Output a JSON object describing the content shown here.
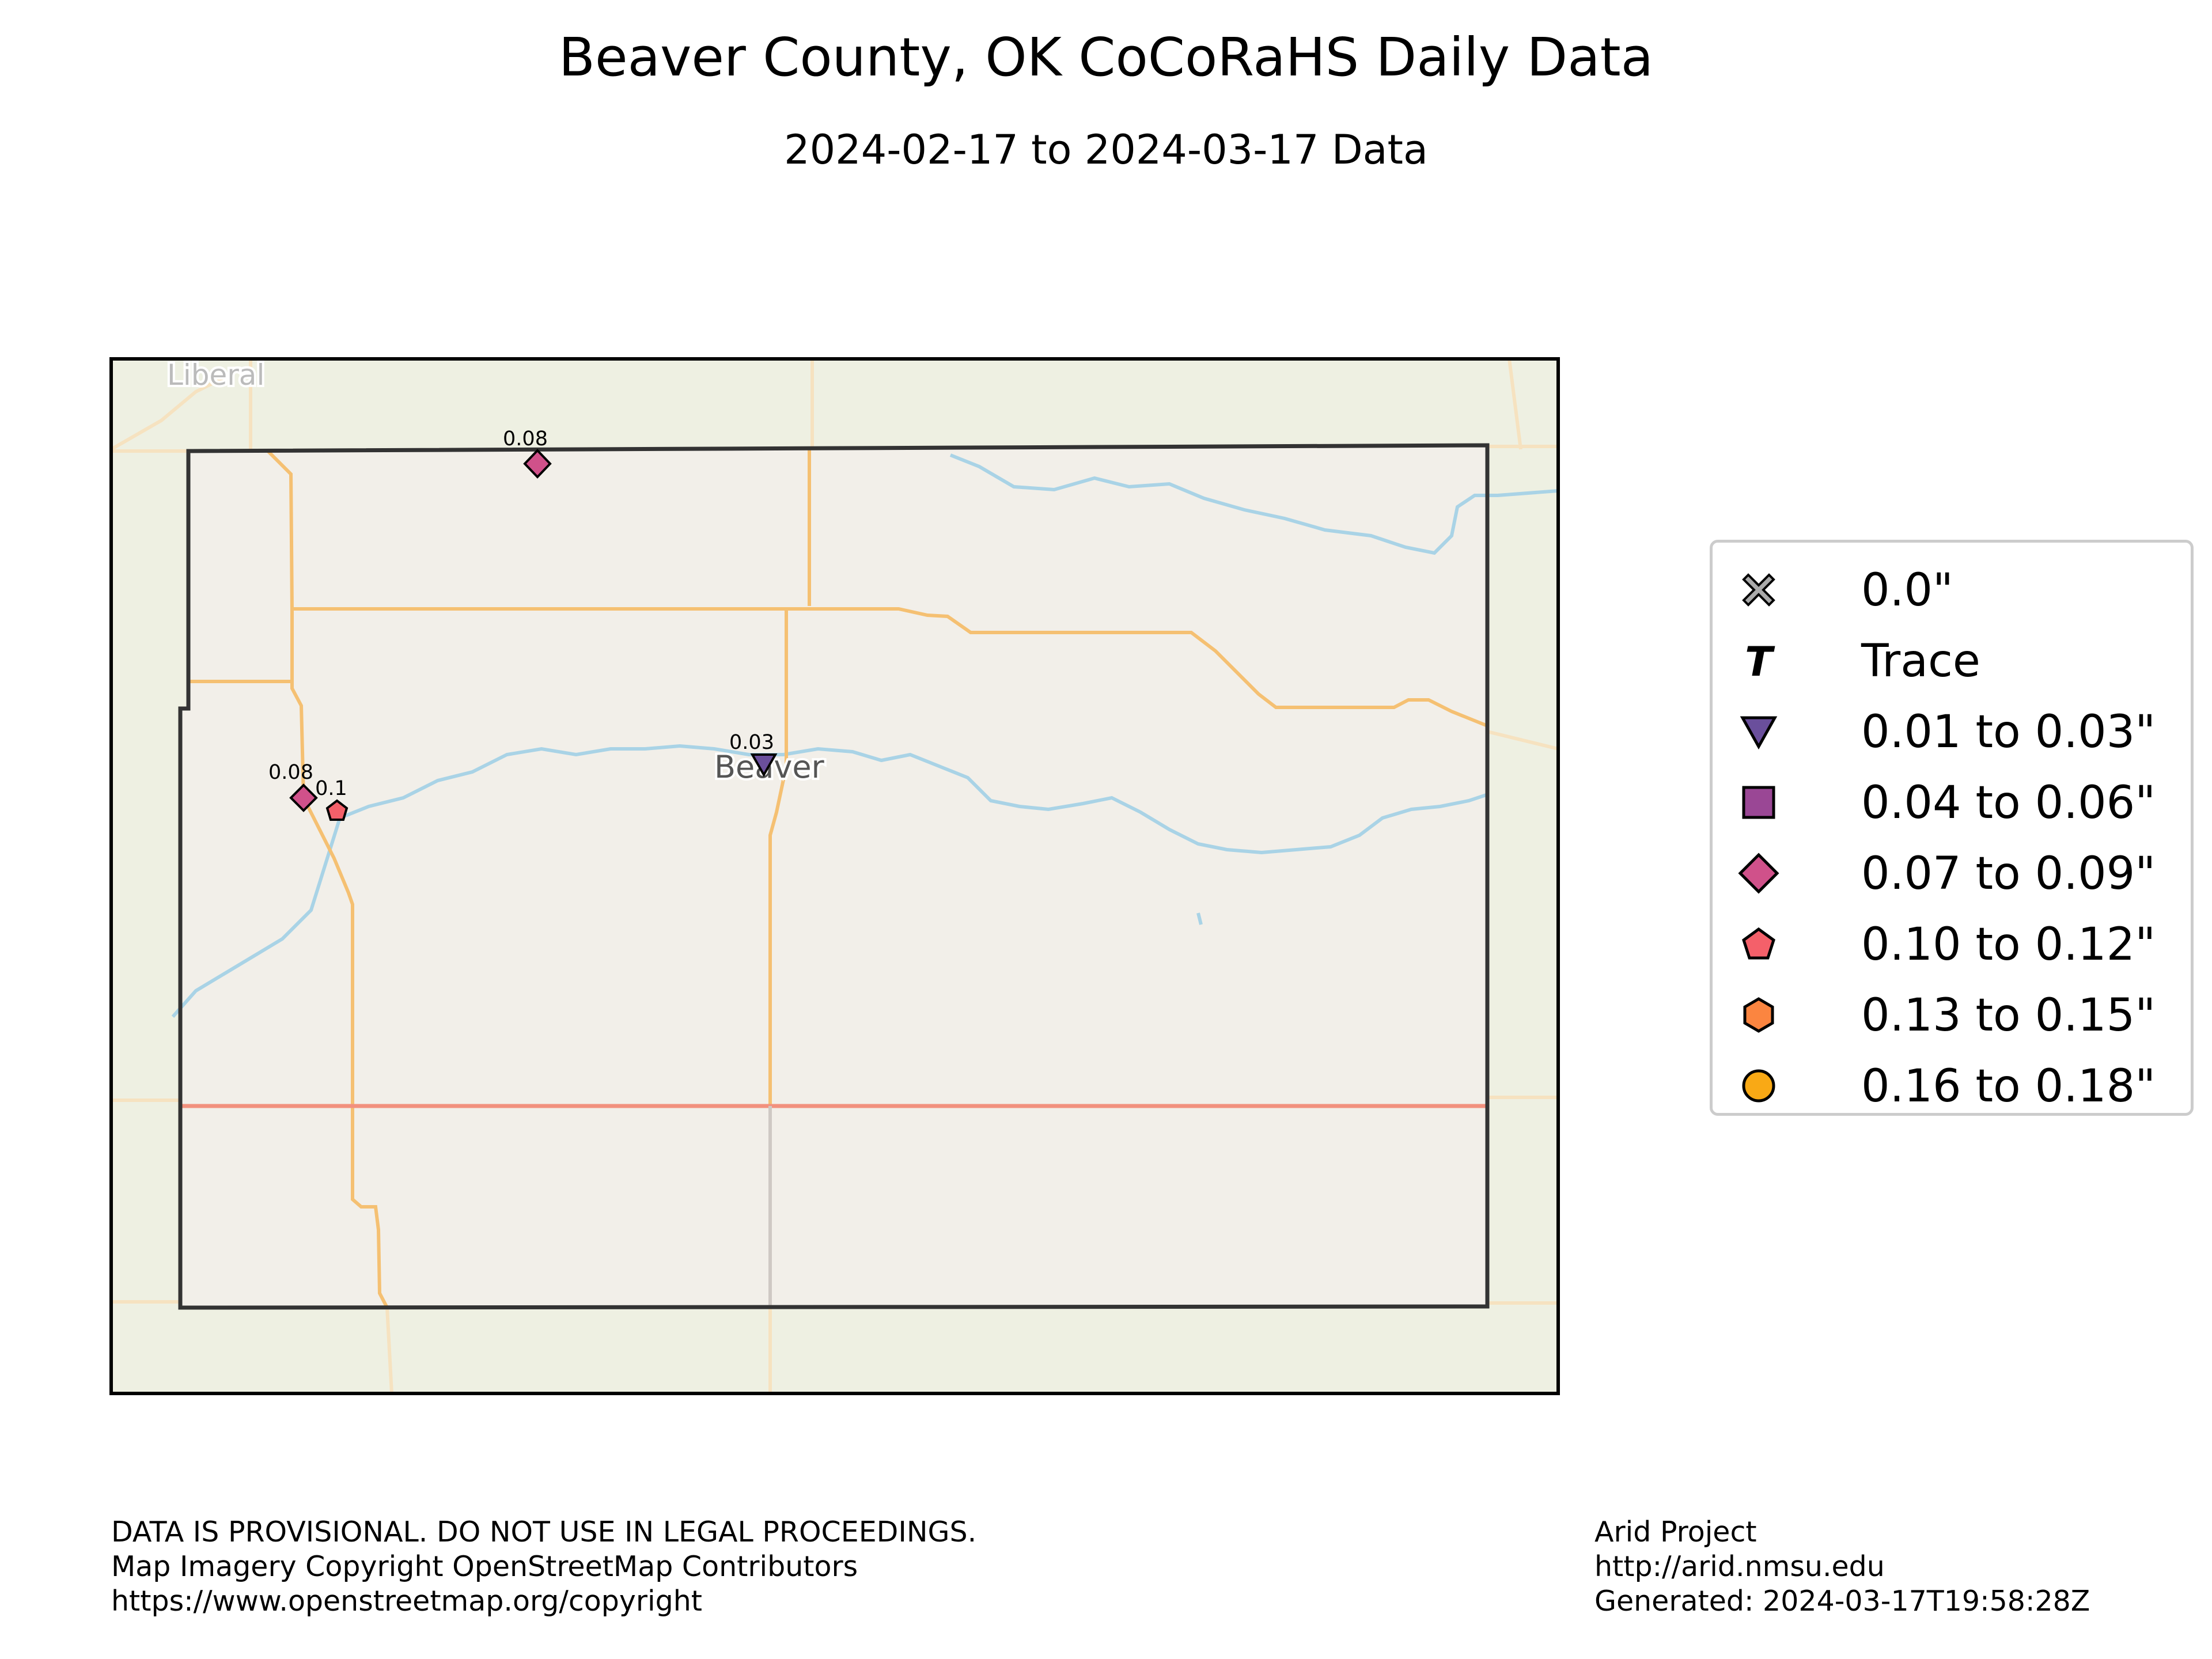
{
  "title": "Beaver County, OK CoCoRaHS Daily Data",
  "subtitle": "2024-02-17 to 2024-03-17 Data",
  "map": {
    "town_labels": [
      "Liberal",
      "Beaver"
    ],
    "stations": [
      {
        "value": "0.08",
        "category": "0.07 to 0.09\""
      },
      {
        "value": "0.03",
        "category": "0.01 to 0.03\""
      },
      {
        "value": "0.08",
        "category": "0.07 to 0.09\""
      },
      {
        "value": "0.1",
        "category": "0.10 to 0.12\""
      }
    ]
  },
  "legend": {
    "items": [
      {
        "label": "0.0\"",
        "symbol": "x-mark",
        "color": "#aaaaaa"
      },
      {
        "label": "Trace",
        "symbol": "T-letter",
        "color": "#000000"
      },
      {
        "label": "0.01 to 0.03\"",
        "symbol": "triangle-down",
        "color": "#6a4f9c"
      },
      {
        "label": "0.04 to 0.06\"",
        "symbol": "square",
        "color": "#9a4795"
      },
      {
        "label": "0.07 to 0.09\"",
        "symbol": "diamond",
        "color": "#d0518a"
      },
      {
        "label": "0.10 to 0.12\"",
        "symbol": "pentagon",
        "color": "#f4606a"
      },
      {
        "label": "0.13 to 0.15\"",
        "symbol": "hexagon",
        "color": "#fb8540"
      },
      {
        "label": "0.16 to 0.18\"",
        "symbol": "circle",
        "color": "#f9a915"
      }
    ]
  },
  "footer": {
    "left": [
      "DATA IS PROVISIONAL. DO NOT USE IN LEGAL PROCEEDINGS.",
      "Map Imagery Copyright OpenStreetMap Contributors",
      "https://www.openstreetmap.org/copyright"
    ],
    "right": [
      "Arid Project",
      "http://arid.nmsu.edu",
      "Generated: 2024-03-17T19:58:28Z"
    ]
  }
}
